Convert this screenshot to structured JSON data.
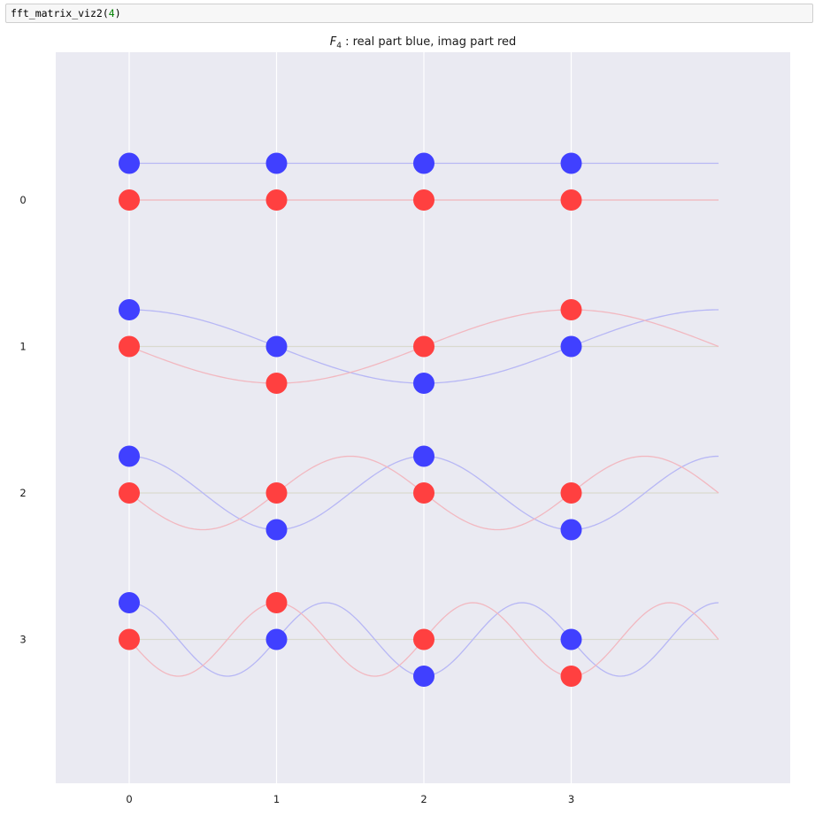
{
  "code_cell": {
    "func": "fft_matrix_viz2",
    "open": "(",
    "arg": "4",
    "close": ")"
  },
  "chart_data": {
    "type": "scatter",
    "title_symbol": "F",
    "title_subscript": "4",
    "title_rest": " : real part blue, imag part red",
    "n": 4,
    "x_ticks": [
      "0",
      "1",
      "2",
      "3"
    ],
    "y_ticks": [
      "0",
      "1",
      "2",
      "3"
    ],
    "grid": true,
    "colors": {
      "real": "#4040ff",
      "imag": "#ff4040",
      "real_line": "#b7b7f5",
      "imag_line": "#f2b8c0",
      "zero_line": "#d9d9cf",
      "background": "#eaeaf2",
      "grid": "#ffffff"
    },
    "series": [
      {
        "row": 0,
        "real": [
          1,
          1,
          1,
          1
        ],
        "imag": [
          0,
          0,
          0,
          0
        ]
      },
      {
        "row": 1,
        "real": [
          1,
          0,
          -1,
          0
        ],
        "imag": [
          0,
          -1,
          0,
          1
        ]
      },
      {
        "row": 2,
        "real": [
          1,
          -1,
          1,
          -1
        ],
        "imag": [
          0,
          0,
          0,
          0
        ]
      },
      {
        "row": 3,
        "real": [
          1,
          0,
          -1,
          0
        ],
        "imag": [
          0,
          1,
          0,
          -1
        ]
      }
    ]
  }
}
